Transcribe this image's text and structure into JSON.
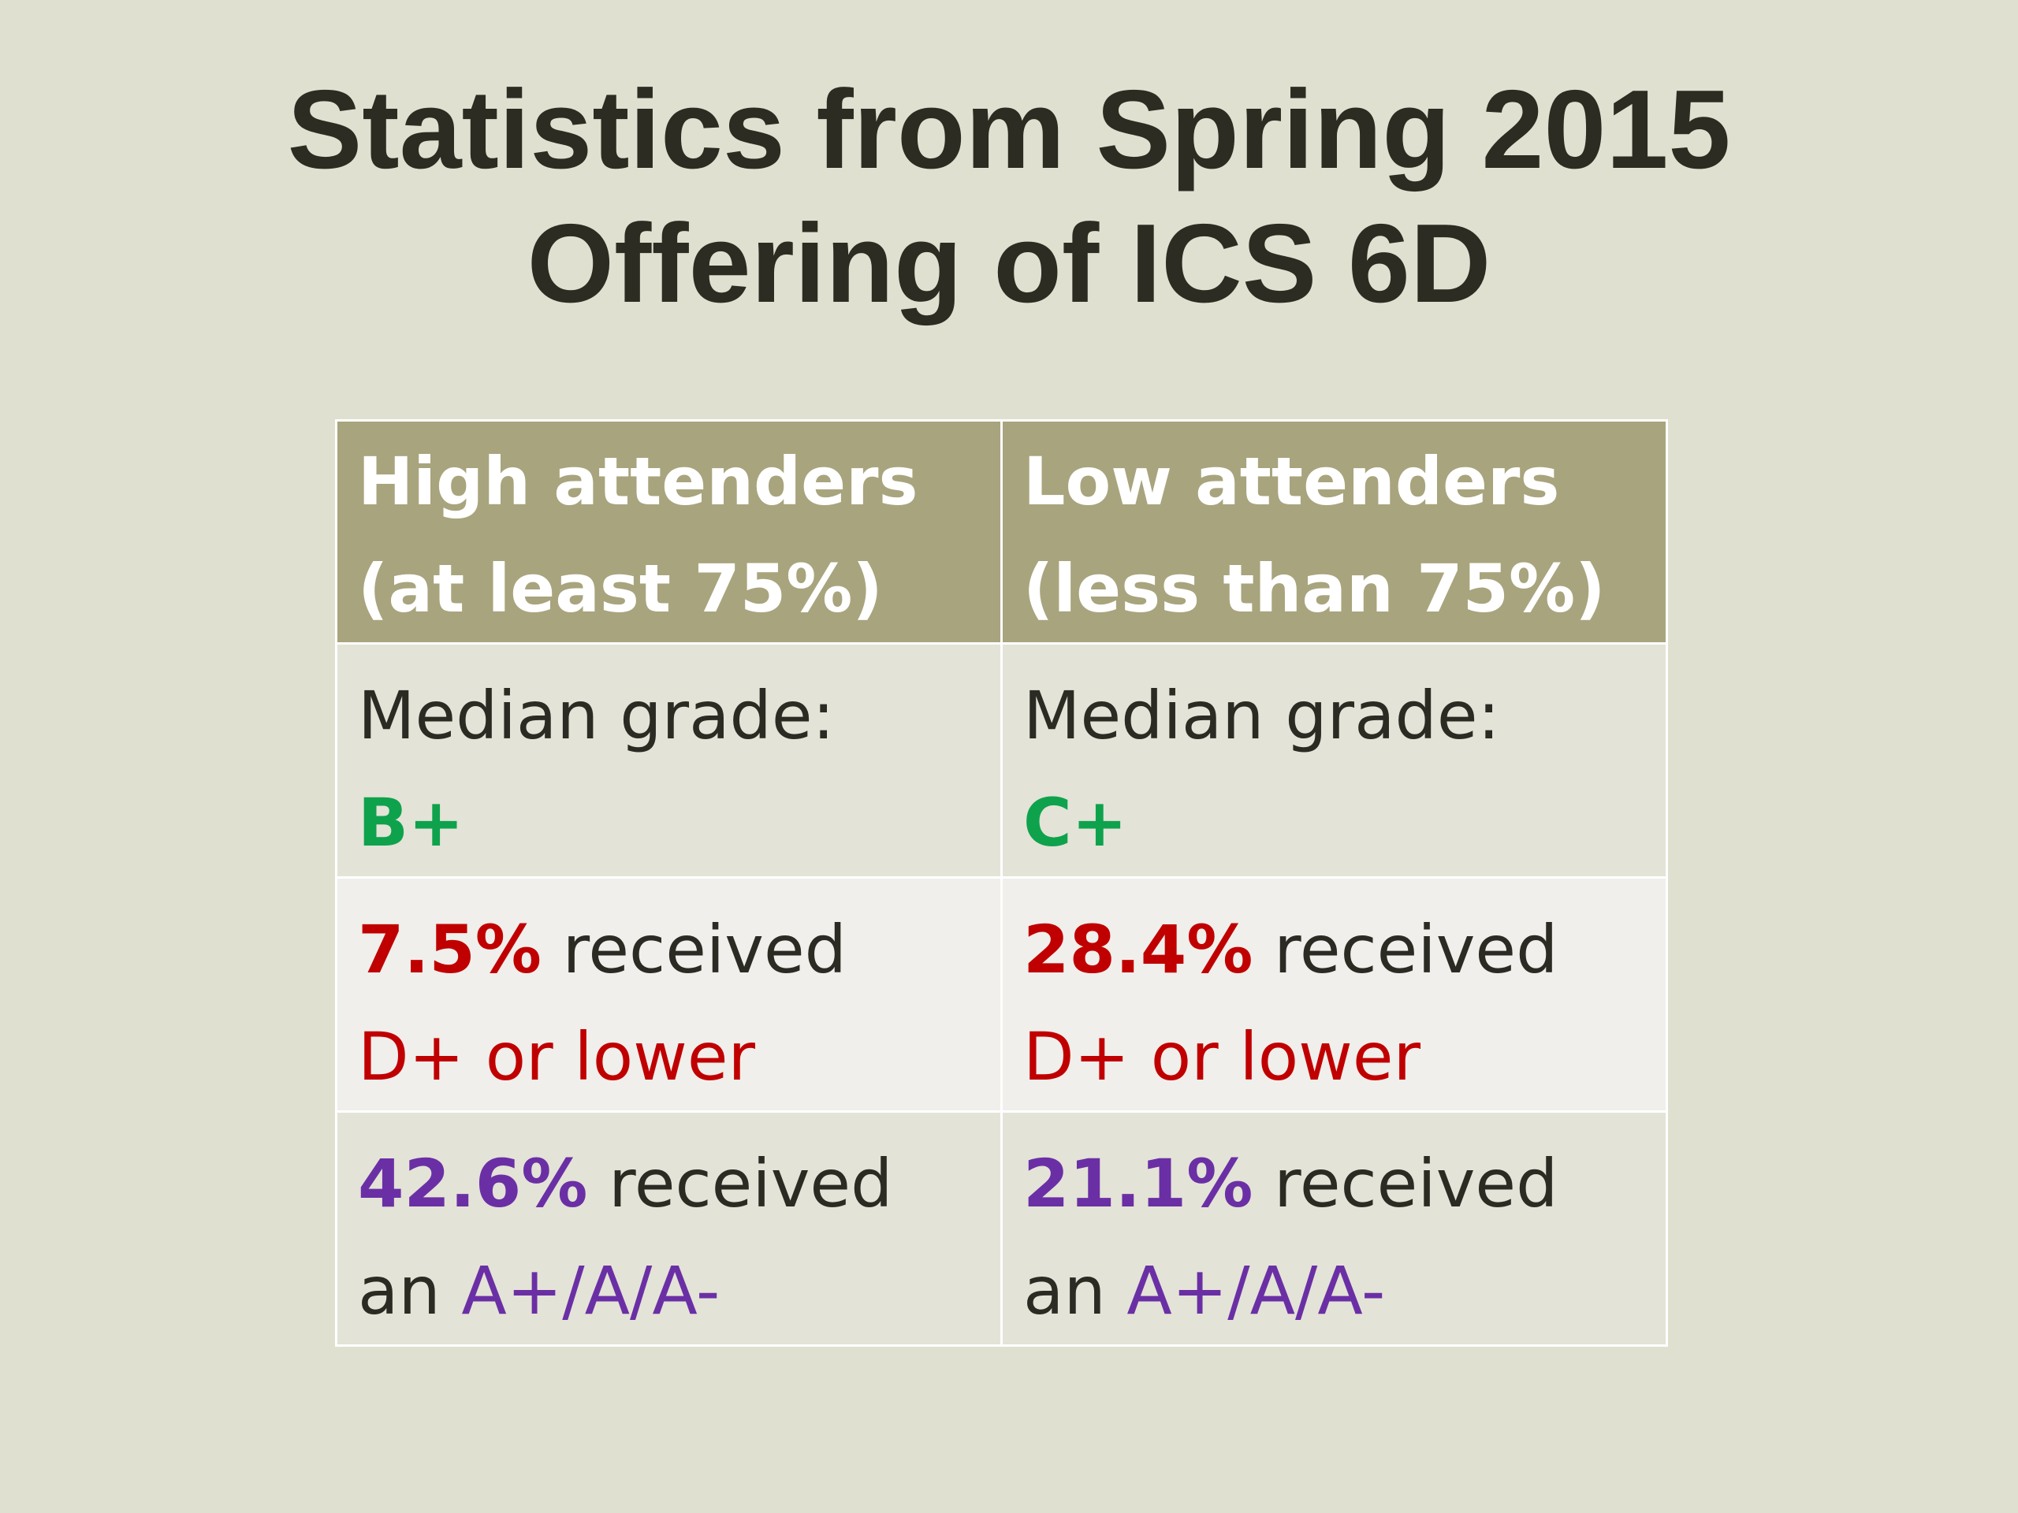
{
  "title": {
    "line1": "Statistics from Spring 2015",
    "line2": "Offering of ICS 6D"
  },
  "table": {
    "headers": [
      {
        "line1": "High attenders",
        "line2": "(at least 75%)"
      },
      {
        "line1": "Low attenders",
        "line2": "(less than 75%)"
      }
    ],
    "rows": {
      "median": [
        {
          "label": "Median grade:",
          "value": "B+"
        },
        {
          "label": "Median grade:",
          "value": "C+"
        }
      ],
      "low_grades": [
        {
          "pct": "7.5%",
          "text": " received",
          "grade": "D+ or lower"
        },
        {
          "pct": "28.4%",
          "text": " received",
          "grade": "D+ or lower"
        }
      ],
      "high_grades": [
        {
          "pct": "42.6%",
          "text": " received",
          "prefix": "an ",
          "grade": "A+/A/A-"
        },
        {
          "pct": "21.1%",
          "text": " received",
          "prefix": "an ",
          "grade": "A+/A/A-"
        }
      ]
    }
  },
  "colors": {
    "background": "#e0e0d1",
    "header_fill": "#a8a47d",
    "median_value": "#0ea24c",
    "low_grade": "#c00000",
    "high_grade": "#6b2fa5"
  }
}
